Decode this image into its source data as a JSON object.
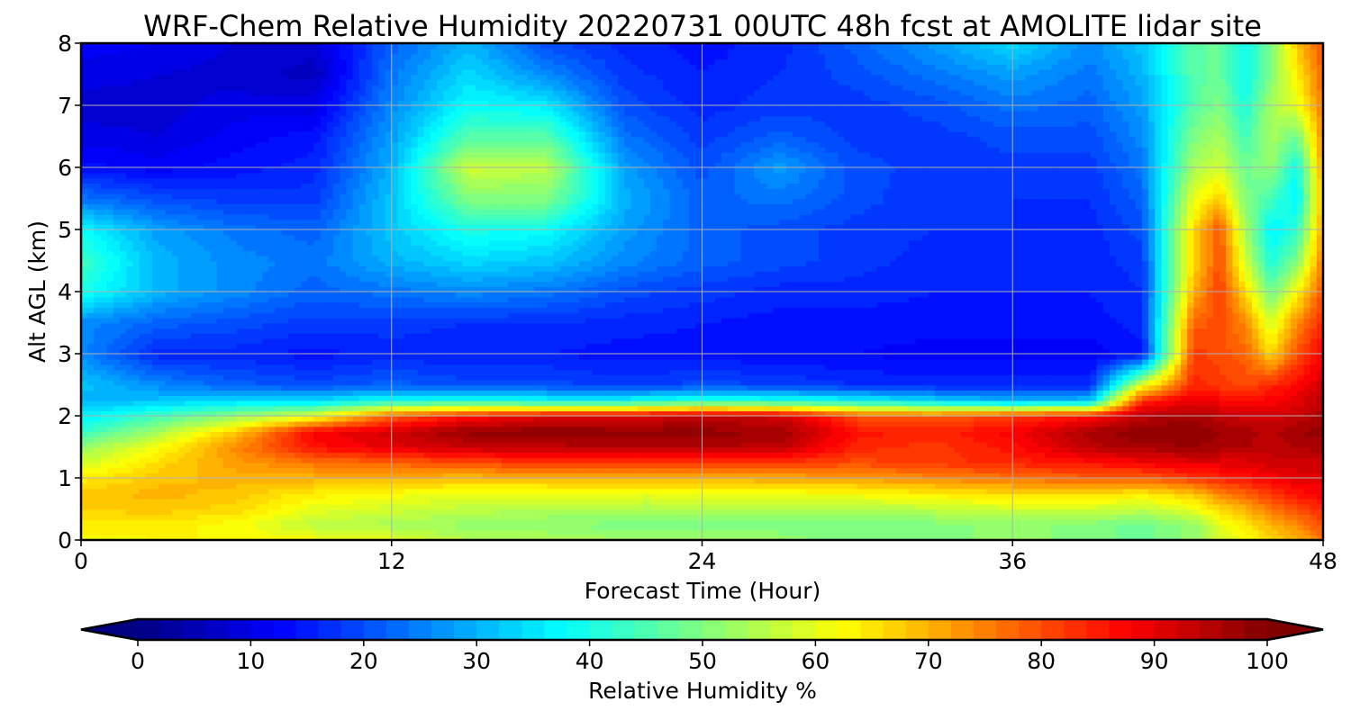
{
  "chart_data": {
    "type": "heatmap",
    "title": "WRF-Chem Relative Humidity 20220731 00UTC 48h fcst at AMOLITE lidar site",
    "xlabel": "Forecast Time (Hour)",
    "ylabel": "Alt AGL (km)",
    "xlim": [
      0,
      48
    ],
    "ylim": [
      0,
      8
    ],
    "xticks": [
      0,
      12,
      24,
      36,
      48
    ],
    "yticks": [
      0,
      1,
      2,
      3,
      4,
      5,
      6,
      7,
      8
    ],
    "grid": true,
    "colormap": "jet",
    "colorbar": {
      "label": "Relative Humidity %",
      "min": 0,
      "max": 100,
      "ticks": [
        0,
        10,
        20,
        30,
        40,
        50,
        60,
        70,
        80,
        90,
        100
      ],
      "extend": "both",
      "orientation": "horizontal"
    },
    "x": [
      0,
      3,
      6,
      9,
      12,
      15,
      18,
      21,
      24,
      27,
      30,
      33,
      36,
      39,
      41,
      43,
      44,
      45,
      46,
      47,
      48
    ],
    "y": [
      0,
      0.25,
      0.5,
      0.75,
      1,
      1.25,
      1.5,
      1.75,
      2,
      2.25,
      2.5,
      3,
      3.5,
      4,
      4.5,
      5,
      5.5,
      6,
      6.5,
      7,
      7.5,
      8
    ],
    "z": [
      [
        62,
        63,
        63,
        62,
        60,
        55,
        55,
        53,
        52,
        52,
        50,
        50,
        52,
        50,
        48,
        52,
        58,
        62,
        66,
        70,
        76
      ],
      [
        64,
        64,
        62,
        56,
        54,
        52,
        51,
        50,
        50,
        50,
        49,
        50,
        52,
        50,
        48,
        52,
        60,
        64,
        70,
        74,
        80
      ],
      [
        67,
        68,
        66,
        60,
        58,
        56,
        55,
        54,
        54,
        55,
        55,
        56,
        58,
        58,
        56,
        60,
        66,
        70,
        76,
        80,
        84
      ],
      [
        68,
        70,
        68,
        64,
        62,
        60,
        60,
        60,
        60,
        61,
        62,
        64,
        66,
        66,
        64,
        68,
        74,
        78,
        82,
        86,
        88
      ],
      [
        64,
        68,
        70,
        70,
        70,
        69,
        70,
        70,
        70,
        71,
        72,
        74,
        76,
        78,
        78,
        82,
        84,
        86,
        88,
        90,
        90
      ],
      [
        58,
        66,
        72,
        76,
        78,
        80,
        82,
        82,
        82,
        82,
        80,
        82,
        84,
        86,
        88,
        90,
        90,
        90,
        92,
        92,
        92
      ],
      [
        52,
        62,
        74,
        86,
        90,
        93,
        94,
        95,
        95,
        94,
        84,
        82,
        86,
        94,
        96,
        97,
        96,
        95,
        94,
        95,
        96
      ],
      [
        42,
        54,
        68,
        88,
        92,
        98,
        99,
        98,
        98,
        97,
        86,
        84,
        88,
        96,
        99,
        99,
        97,
        96,
        94,
        97,
        98
      ],
      [
        36,
        44,
        52,
        60,
        78,
        86,
        90,
        91,
        93,
        92,
        80,
        78,
        82,
        86,
        94,
        96,
        94,
        92,
        92,
        93,
        96
      ],
      [
        30,
        32,
        34,
        34,
        40,
        40,
        38,
        38,
        42,
        40,
        38,
        34,
        30,
        32,
        84,
        90,
        88,
        86,
        88,
        90,
        94
      ],
      [
        32,
        26,
        22,
        20,
        22,
        20,
        20,
        18,
        20,
        19,
        17,
        16,
        16,
        16,
        60,
        84,
        82,
        80,
        84,
        87,
        92
      ],
      [
        26,
        16,
        16,
        14,
        16,
        15,
        15,
        14,
        14,
        13,
        13,
        12,
        12,
        12,
        14,
        82,
        80,
        78,
        66,
        80,
        88
      ],
      [
        26,
        22,
        20,
        18,
        18,
        17,
        17,
        16,
        15,
        14,
        14,
        14,
        14,
        14,
        16,
        78,
        80,
        74,
        58,
        74,
        84
      ],
      [
        40,
        30,
        26,
        22,
        24,
        26,
        24,
        20,
        18,
        16,
        16,
        15,
        15,
        15,
        17,
        70,
        82,
        66,
        48,
        62,
        80
      ],
      [
        44,
        30,
        26,
        24,
        30,
        34,
        32,
        26,
        22,
        20,
        18,
        16,
        16,
        16,
        18,
        66,
        80,
        58,
        40,
        50,
        76
      ],
      [
        38,
        28,
        24,
        22,
        32,
        40,
        38,
        28,
        22,
        20,
        18,
        17,
        17,
        16,
        20,
        66,
        80,
        54,
        36,
        42,
        72
      ],
      [
        24,
        20,
        18,
        18,
        32,
        50,
        50,
        30,
        22,
        24,
        20,
        17,
        17,
        17,
        22,
        60,
        68,
        50,
        44,
        36,
        70
      ],
      [
        14,
        12,
        14,
        16,
        30,
        58,
        56,
        28,
        20,
        28,
        20,
        18,
        18,
        18,
        24,
        54,
        58,
        48,
        52,
        38,
        72
      ],
      [
        10,
        9,
        12,
        14,
        28,
        46,
        46,
        24,
        18,
        22,
        18,
        18,
        20,
        20,
        26,
        50,
        54,
        44,
        54,
        48,
        74
      ],
      [
        8,
        8,
        10,
        10,
        26,
        38,
        36,
        20,
        16,
        18,
        18,
        20,
        24,
        22,
        28,
        46,
        50,
        40,
        54,
        60,
        76
      ],
      [
        10,
        9,
        8,
        6,
        24,
        34,
        26,
        18,
        15,
        17,
        20,
        24,
        28,
        24,
        30,
        46,
        48,
        38,
        50,
        64,
        78
      ],
      [
        12,
        11,
        9,
        8,
        22,
        30,
        20,
        16,
        14,
        16,
        22,
        28,
        34,
        26,
        32,
        46,
        48,
        38,
        50,
        68,
        80
      ]
    ]
  }
}
